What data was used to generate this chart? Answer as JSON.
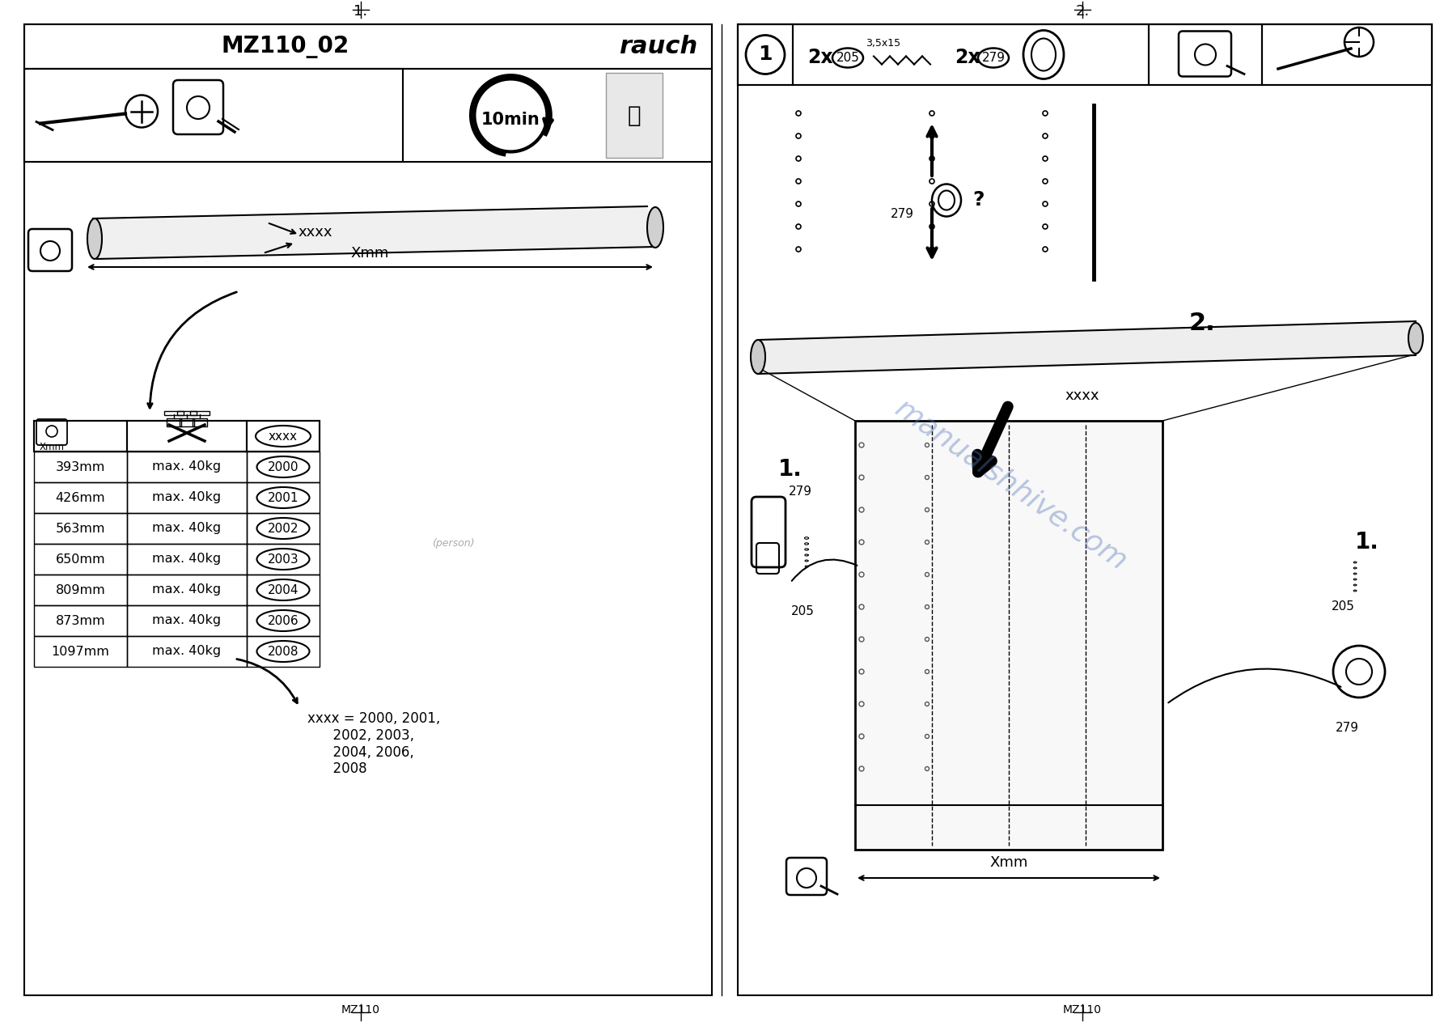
{
  "bg_color": "#ffffff",
  "border_color": "#000000",
  "page_title_left": "1.",
  "page_title_right": "2.",
  "left_panel": {
    "header_text": "MZ110_02",
    "brand_text": "rauch",
    "time_text": "10min",
    "tube_label": "xxxx",
    "tube_measure": "Xmm",
    "table_rows": [
      [
        "393mm",
        "max. 40kg",
        "2000"
      ],
      [
        "426mm",
        "max. 40kg",
        "2001"
      ],
      [
        "563mm",
        "max. 40kg",
        "2002"
      ],
      [
        "650mm",
        "max. 40kg",
        "2003"
      ],
      [
        "809mm",
        "max. 40kg",
        "2004"
      ],
      [
        "873mm",
        "max. 40kg",
        "2006"
      ],
      [
        "1097mm",
        "max. 40kg",
        "2008"
      ]
    ],
    "footnote": "xxxx = 2000, 2001,\n      2002, 2003,\n      2004, 2006,\n      2008"
  },
  "right_panel": {
    "step1_qty1": "2x",
    "step1_code1": "205",
    "step1_screw": "3,5x15",
    "step1_qty2": "2x",
    "step1_code2": "279",
    "step2_label": "2.",
    "tube_label": "xxxx",
    "measure": "Xmm",
    "step_label1": "1.",
    "step_label2": "1.",
    "part279a": "279",
    "part205a": "205",
    "part205b": "205",
    "part279b": "279"
  },
  "watermark": "manualshhive.com",
  "footer_left": "MZ110",
  "footer_right": "MZ110"
}
